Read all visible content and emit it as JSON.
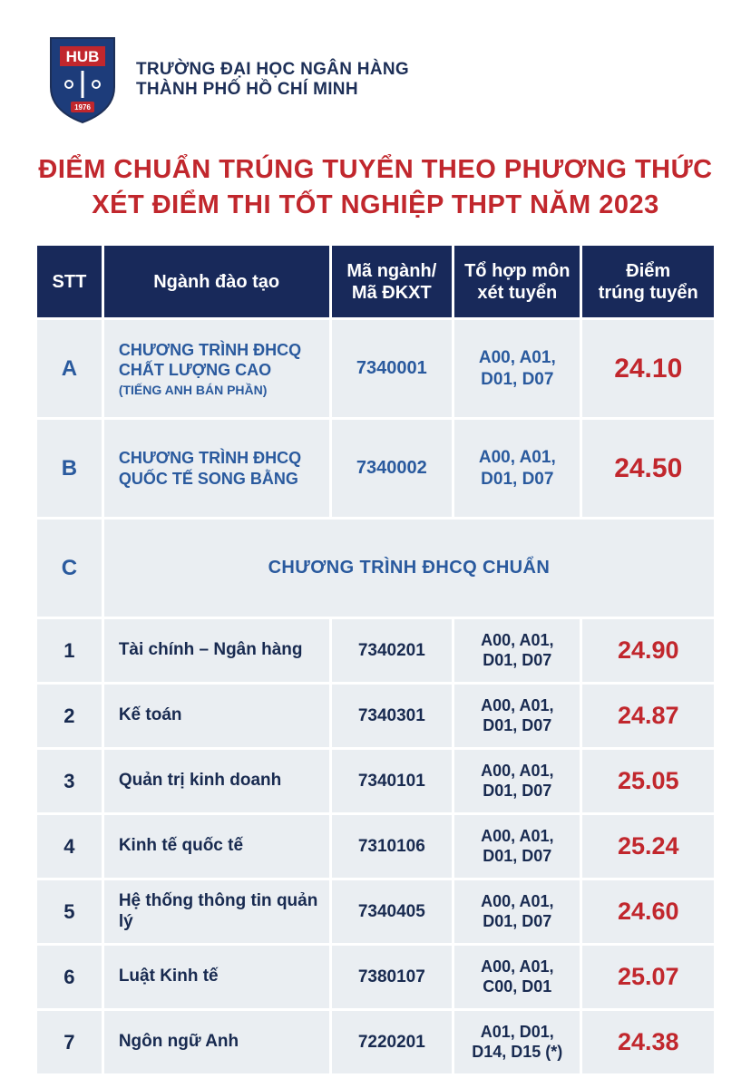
{
  "header": {
    "uni_line1": "TRƯỜNG ĐẠI HỌC NGÂN HÀNG",
    "uni_line2": "THÀNH PHỐ HỒ CHÍ MINH",
    "logo": {
      "letters": "HUB",
      "year": "1976",
      "shield_fill": "#1d3c7a",
      "banner_fill": "#c1272d",
      "outline": "#1d2f57"
    }
  },
  "title": {
    "line1": "ĐIỂM CHUẨN TRÚNG TUYỂN THEO PHƯƠNG THỨC",
    "line2": "XÉT ĐIỂM THI TỐT NGHIỆP THPT NĂM 2023"
  },
  "table": {
    "header_bg": "#18295a",
    "row_bg": "#eaeef2",
    "border_color": "#ffffff",
    "program_text_color": "#2a5a9e",
    "item_text_color": "#182a50",
    "score_color": "#c1272d",
    "columns": {
      "stt": "STT",
      "name": "Ngành đào tạo",
      "code": "Mã ngành/\nMã ĐKXT",
      "combo": "Tổ hợp môn\nxét tuyển",
      "score": "Điểm\ntrúng tuyển"
    },
    "programs": [
      {
        "stt": "A",
        "name": "CHƯƠNG TRÌNH ĐHCQ CHẤT LƯỢNG CAO",
        "name_sub": "(TIẾNG ANH BÁN PHẦN)",
        "code": "7340001",
        "combo": "A00, A01, D01, D07",
        "score": "24.10"
      },
      {
        "stt": "B",
        "name": "CHƯƠNG TRÌNH ĐHCQ QUỐC TẾ SONG BẰNG",
        "name_sub": "",
        "code": "7340002",
        "combo": "A00, A01, D01, D07",
        "score": "24.50"
      }
    ],
    "section": {
      "stt": "C",
      "label": "CHƯƠNG TRÌNH ĐHCQ CHUẨN"
    },
    "items": [
      {
        "stt": "1",
        "name": "Tài chính – Ngân hàng",
        "code": "7340201",
        "combo": "A00, A01, D01, D07",
        "score": "24.90"
      },
      {
        "stt": "2",
        "name": "Kế toán",
        "code": "7340301",
        "combo": "A00, A01, D01, D07",
        "score": "24.87"
      },
      {
        "stt": "3",
        "name": "Quản trị kinh doanh",
        "code": "7340101",
        "combo": "A00, A01, D01, D07",
        "score": "25.05"
      },
      {
        "stt": "4",
        "name": "Kinh tế quốc tế",
        "code": "7310106",
        "combo": "A00, A01, D01, D07",
        "score": "25.24"
      },
      {
        "stt": "5",
        "name": "Hệ thống thông tin quản lý",
        "code": "7340405",
        "combo": "A00, A01, D01, D07",
        "score": "24.60"
      },
      {
        "stt": "6",
        "name": "Luật Kinh tế",
        "code": "7380107",
        "combo": "A00, A01, C00, D01",
        "score": "25.07"
      },
      {
        "stt": "7",
        "name": "Ngôn ngữ Anh",
        "code": "7220201",
        "combo": "A01, D01, D14, D15 (*)",
        "score": "24.38"
      }
    ]
  }
}
